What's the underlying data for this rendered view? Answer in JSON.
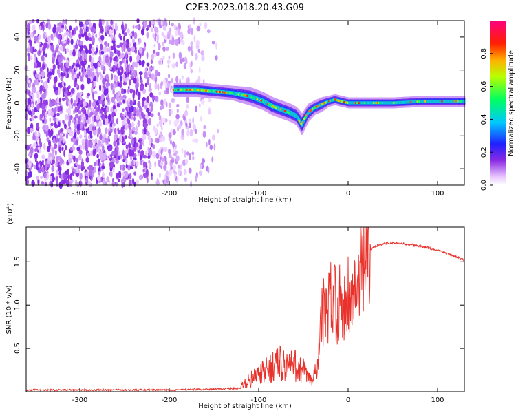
{
  "title": "C2E3.2023.018.20.43.G09",
  "chart_data": [
    {
      "type": "heatmap",
      "xlabel": "Height of straight line (km)",
      "ylabel": "Frequency (Hz)",
      "xlim": [
        -360,
        130
      ],
      "ylim": [
        -50,
        50
      ],
      "x_ticks": [
        -300,
        -200,
        -100,
        0,
        100
      ],
      "y_ticks": [
        -40,
        -20,
        0,
        20,
        40
      ],
      "colorbar": {
        "label": "Normalized spectral amplitude",
        "range": [
          0,
          1
        ],
        "ticks": [
          0.0,
          0.2,
          0.4,
          0.6,
          0.8
        ],
        "colors": [
          "#ffffff",
          "#e9c8ff",
          "#8a2be2",
          "#2020ff",
          "#00c8ff",
          "#00ff60",
          "#ffff00",
          "#ff8000",
          "#ff0000",
          "#ff0080"
        ]
      },
      "signal_track": {
        "x": [
          -195,
          -170,
          -150,
          -130,
          -110,
          -95,
          -85,
          -75,
          -65,
          -58,
          -52,
          -45,
          -38,
          -30,
          -22,
          -15,
          -8,
          0,
          20,
          50,
          85,
          90,
          110,
          130
        ],
        "y": [
          8,
          8,
          7,
          6,
          4,
          1,
          -2,
          -4,
          -6,
          -8,
          -13,
          -6,
          -3,
          -1,
          1,
          2,
          1,
          0,
          0,
          0,
          1,
          1,
          1,
          1
        ],
        "width_hz": [
          4,
          4,
          4,
          4,
          5,
          5,
          5,
          5,
          5,
          5,
          6,
          5,
          4,
          4,
          3,
          3,
          3,
          3,
          3,
          3,
          3,
          3,
          3,
          3
        ]
      },
      "noise_region_x": [
        -360,
        -140
      ]
    },
    {
      "type": "line",
      "xlabel": "Height of straight line (km)",
      "ylabel": "SNR (10 * v/v)",
      "y_multiplier_label": "(x10",
      "y_multiplier_exp": "4",
      "y_multiplier_close": ")",
      "xlim": [
        -360,
        130
      ],
      "ylim": [
        0,
        1.9
      ],
      "x_ticks": [
        -300,
        -200,
        -100,
        0,
        100
      ],
      "y_ticks": [
        0.5,
        1.0,
        1.5
      ],
      "y_tick_labels": [
        "0.5",
        "1.0",
        "1.5"
      ],
      "color": "#e8322b",
      "series": [
        {
          "x": [
            -360,
            -300,
            -200,
            -150,
            -120,
            -110,
            -100,
            -90,
            -80,
            -70,
            -60,
            -50,
            -45,
            -40,
            -35,
            -30,
            -27,
            -24,
            -20,
            -16,
            -12,
            -10,
            -8,
            -5,
            0,
            5,
            10,
            15,
            20,
            25,
            30,
            40,
            50,
            60,
            70,
            80,
            90,
            100,
            110,
            120,
            130
          ],
          "y": [
            0.02,
            0.02,
            0.02,
            0.03,
            0.04,
            0.1,
            0.14,
            0.18,
            0.25,
            0.22,
            0.22,
            0.18,
            0.12,
            0.08,
            0.2,
            0.85,
            1.0,
            0.9,
            1.1,
            1.25,
            1.0,
            1.15,
            0.9,
            1.05,
            1.2,
            1.1,
            1.3,
            1.45,
            1.58,
            1.63,
            1.68,
            1.71,
            1.72,
            1.71,
            1.7,
            1.68,
            1.66,
            1.63,
            1.6,
            1.56,
            1.52
          ]
        }
      ]
    }
  ]
}
